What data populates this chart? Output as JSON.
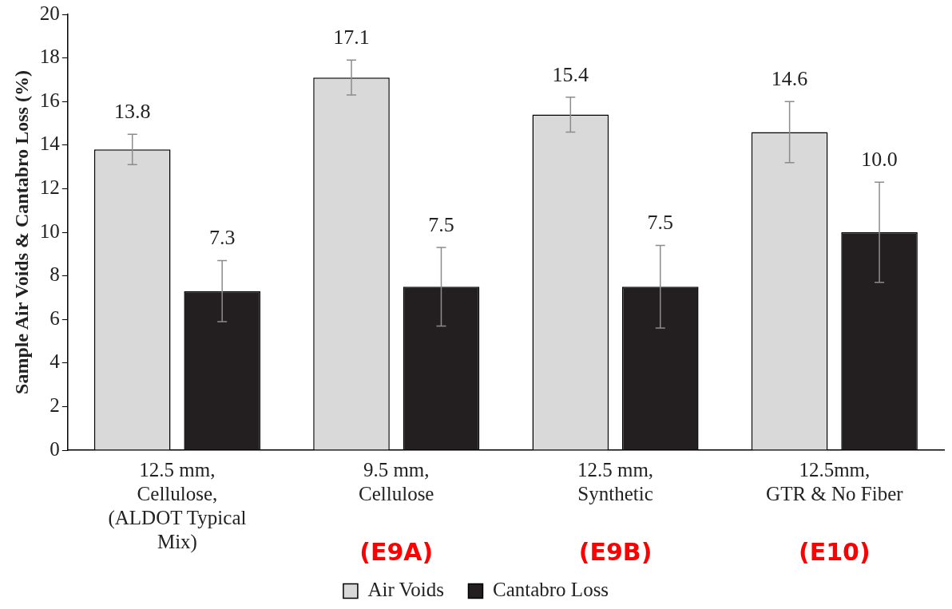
{
  "chart_data": {
    "type": "bar",
    "ylabel": "Sample Air Voids & Cantabro Loss (%)",
    "categories": [
      "12.5 mm, Cellulose, (ALDOT Typical Mix)",
      "9.5 mm, Cellulose",
      "12.5 mm, Synthetic",
      "12.5mm, GTR & No Fiber"
    ],
    "series": [
      {
        "name": "Air Voids",
        "color": "#d9d9d9",
        "values": [
          13.8,
          17.1,
          15.4,
          14.6
        ],
        "errors": [
          0.7,
          0.8,
          0.8,
          1.4
        ],
        "value_labels": [
          "13.8",
          "17.1",
          "15.4",
          "14.6"
        ]
      },
      {
        "name": "Cantabro Loss",
        "color": "#231f20",
        "values": [
          7.3,
          7.5,
          7.5,
          10.0
        ],
        "errors": [
          1.4,
          1.8,
          1.9,
          2.3
        ],
        "value_labels": [
          "7.3",
          "7.5",
          "7.5",
          "10.0"
        ]
      }
    ],
    "ylim": [
      0,
      20
    ],
    "yticks": [
      0,
      2,
      4,
      6,
      8,
      10,
      12,
      14,
      16,
      18,
      20
    ],
    "grid": false,
    "legend": "bottom",
    "annotations": [
      "(E9A)",
      "(E9B)",
      "(E10)"
    ]
  }
}
